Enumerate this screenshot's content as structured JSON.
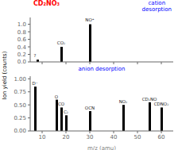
{
  "chart_data": [
    {
      "type": "bar",
      "title": "cation\ndesorption",
      "subtitle": "CD₂NO₃",
      "ylabel": "Ion yield (counts)",
      "x": [
        8,
        18,
        30
      ],
      "values": [
        0.06,
        0.4,
        1.0
      ],
      "color": "#000000",
      "xlim": [
        5,
        65
      ],
      "xticks": [
        10,
        20,
        30,
        40,
        50,
        60
      ],
      "ylim": [
        0,
        1.18
      ],
      "yticks": [
        {
          "value": 0,
          "label": "0.0"
        },
        {
          "value": 0.2,
          "label": "0.2"
        },
        {
          "value": 0.4,
          "label": "0.4"
        },
        {
          "value": 0.6,
          "label": "0.6"
        },
        {
          "value": 0.8,
          "label": "0.8"
        },
        {
          "value": 1.0,
          "label": "1.0"
        }
      ],
      "tick_labels": "y",
      "annotations": [
        {
          "text": "CO₂",
          "x": 18,
          "y": 0.43
        },
        {
          "text": "NO⁺",
          "x": 30,
          "y": 1.03
        },
        {
          "text": "?",
          "x": 7,
          "y": 0.08
        }
      ]
    },
    {
      "type": "bar",
      "title": "anion desorption",
      "xlabel": "m/z (amu)",
      "x": [
        7,
        16,
        18,
        20,
        30,
        44,
        55,
        60
      ],
      "values": [
        0.85,
        0.6,
        0.45,
        0.3,
        0.38,
        0.5,
        0.55,
        0.45
      ],
      "color": "#000000",
      "xlim": [
        5,
        65
      ],
      "xticks": [
        10,
        20,
        30,
        40,
        50,
        60
      ],
      "ylim": [
        0,
        1.05
      ],
      "yticks": [
        {
          "value": 0,
          "label": "0.00"
        },
        {
          "value": 0.25,
          "label": "0.25"
        },
        {
          "value": 0.5,
          "label": "0.50"
        },
        {
          "value": 0.75,
          "label": "0.75"
        },
        {
          "value": 1.0,
          "label": "1.00"
        }
      ],
      "annotations": [
        {
          "text": "D⁻",
          "x": 7,
          "y": 0.85
        },
        {
          "text": "O",
          "x": 16,
          "y": 0.6
        },
        {
          "text": "CO",
          "x": 18,
          "y": 0.45
        },
        {
          "text": "C₂",
          "x": 20,
          "y": 0.3
        },
        {
          "text": "OCN",
          "x": 30,
          "y": 0.38
        },
        {
          "text": "NO₂",
          "x": 44,
          "y": 0.5
        },
        {
          "text": "CD₂NO",
          "x": 55,
          "y": 0.55
        },
        {
          "text": "CDNO₂",
          "x": 60,
          "y": 0.45
        }
      ]
    }
  ]
}
